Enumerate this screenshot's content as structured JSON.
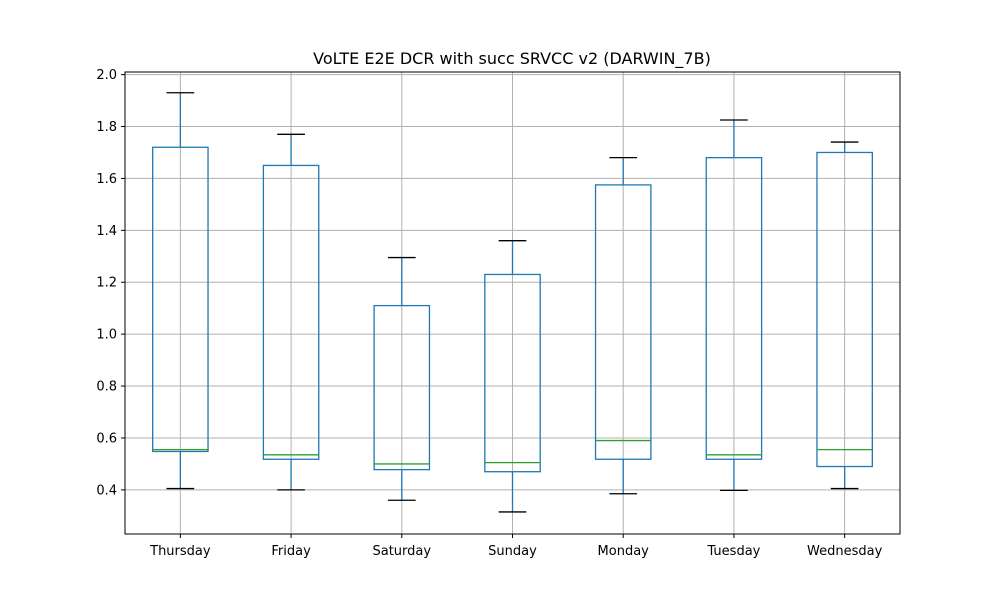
{
  "chart_data": {
    "type": "box",
    "title": "VoLTE E2E DCR with succ SRVCC v2 (DARWIN_7B)",
    "xlabel": "",
    "ylabel": "",
    "ylim": [
      0.23,
      2.01
    ],
    "yticks": [
      0.4,
      0.6,
      0.8,
      1.0,
      1.2,
      1.4,
      1.6,
      1.8,
      2.0
    ],
    "ytick_labels": [
      "0.4",
      "0.6",
      "0.8",
      "1.0",
      "1.2",
      "1.4",
      "1.6",
      "1.8",
      "2.0"
    ],
    "grid": true,
    "categories": [
      "Thursday",
      "Friday",
      "Saturday",
      "Sunday",
      "Monday",
      "Tuesday",
      "Wednesday"
    ],
    "boxes": [
      {
        "category": "Thursday",
        "whislo": 0.405,
        "q1": 0.548,
        "med": 0.555,
        "q3": 1.72,
        "whishi": 1.93
      },
      {
        "category": "Friday",
        "whislo": 0.4,
        "q1": 0.518,
        "med": 0.535,
        "q3": 1.65,
        "whishi": 1.77
      },
      {
        "category": "Saturday",
        "whislo": 0.36,
        "q1": 0.478,
        "med": 0.5,
        "q3": 1.11,
        "whishi": 1.295
      },
      {
        "category": "Sunday",
        "whislo": 0.315,
        "q1": 0.47,
        "med": 0.505,
        "q3": 1.23,
        "whishi": 1.36
      },
      {
        "category": "Monday",
        "whislo": 0.385,
        "q1": 0.518,
        "med": 0.59,
        "q3": 1.575,
        "whishi": 1.68
      },
      {
        "category": "Tuesday",
        "whislo": 0.398,
        "q1": 0.518,
        "med": 0.535,
        "q3": 1.68,
        "whishi": 1.825
      },
      {
        "category": "Wednesday",
        "whislo": 0.405,
        "q1": 0.49,
        "med": 0.555,
        "q3": 1.7,
        "whishi": 1.74
      }
    ],
    "colors": {
      "box": "#1f77b4",
      "median": "#2ca02c",
      "cap": "#000000",
      "grid": "#b0b0b0"
    }
  }
}
